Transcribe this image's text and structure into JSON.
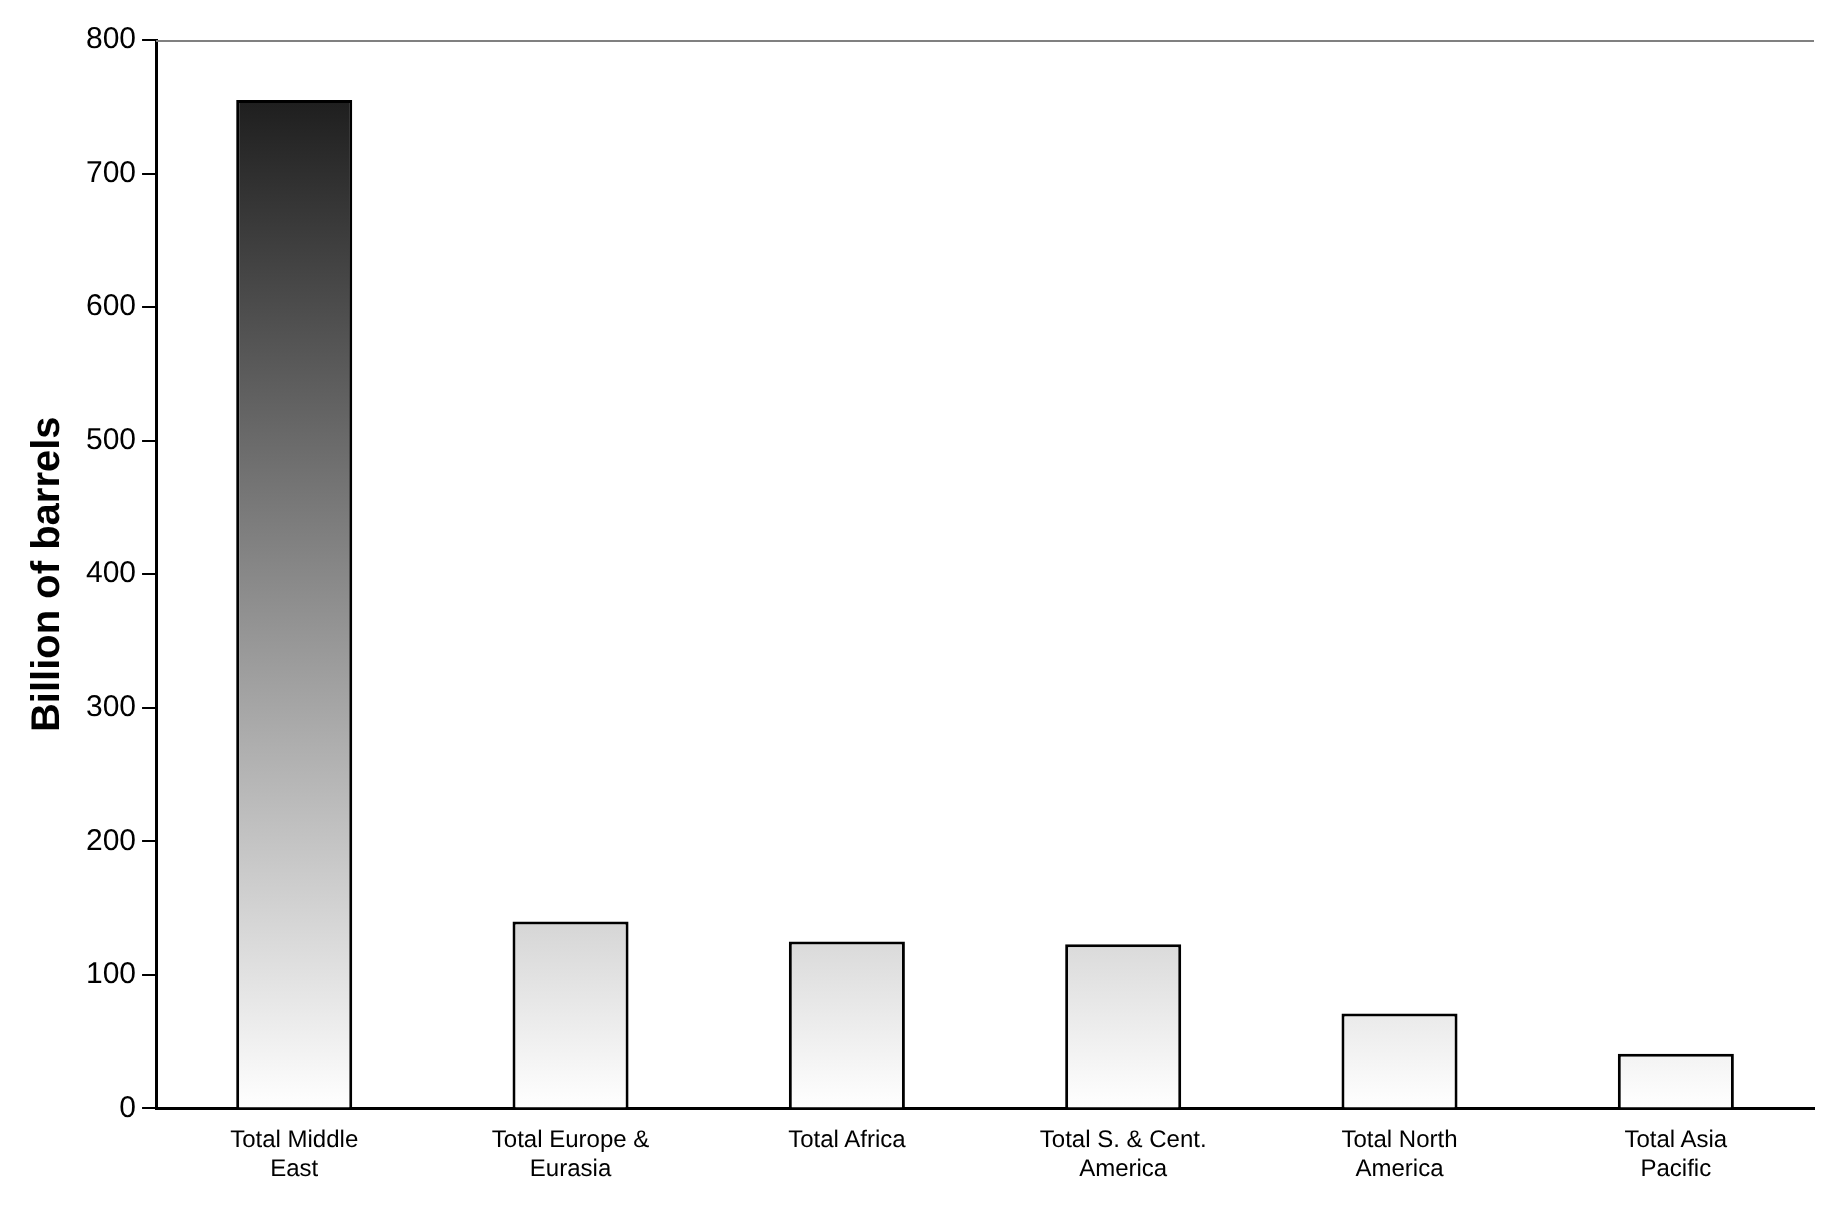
{
  "chart_data": {
    "type": "bar",
    "ylabel": "Billion of barrels",
    "categories": [
      "Total Middle East",
      "Total Europe & Eurasia",
      "Total Africa",
      "Total S. & Cent. America",
      "Total North America",
      "Total Asia Pacific"
    ],
    "values": [
      755,
      140,
      125,
      123,
      71,
      41
    ],
    "color": "#111111",
    "ylim": [
      0,
      800
    ],
    "yticks": [
      0,
      100,
      200,
      300,
      400,
      500,
      600,
      700,
      800
    ],
    "grid": false,
    "legend": false
  }
}
